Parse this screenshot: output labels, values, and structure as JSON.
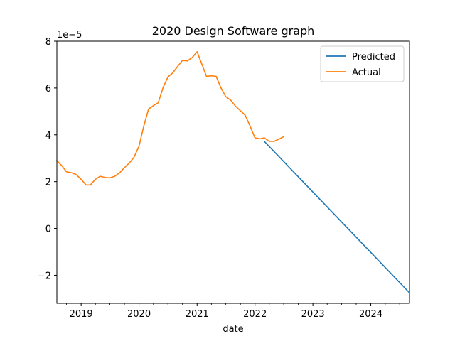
{
  "chart_data": {
    "type": "line",
    "title": "2020 Design Software graph",
    "xlabel": "date",
    "ylabel": "",
    "y_offset_label": "1e−5",
    "y_scale": 1e-05,
    "x_axis_type": "date",
    "xlim": [
      "2018-08-01",
      "2024-09-01"
    ],
    "ylim": [
      -3.2e-05,
      8e-05
    ],
    "xticks": [
      {
        "value": "2019-01-01",
        "label": "2019"
      },
      {
        "value": "2020-01-01",
        "label": "2020"
      },
      {
        "value": "2021-01-01",
        "label": "2021"
      },
      {
        "value": "2022-01-01",
        "label": "2022"
      },
      {
        "value": "2023-01-01",
        "label": "2023"
      },
      {
        "value": "2024-01-01",
        "label": "2024"
      }
    ],
    "yticks": [
      {
        "value": -2e-05,
        "label": "−2"
      },
      {
        "value": 0,
        "label": "0"
      },
      {
        "value": 2e-05,
        "label": "2"
      },
      {
        "value": 4e-05,
        "label": "4"
      },
      {
        "value": 6e-05,
        "label": "6"
      },
      {
        "value": 8e-05,
        "label": "8"
      }
    ],
    "grid": false,
    "legend_position": "top-right",
    "series": [
      {
        "name": "Predicted",
        "color": "#1f77b4",
        "x": [
          "2022-03-01",
          "2024-09-01"
        ],
        "y": [
          3.72e-05,
          -2.75e-05
        ]
      },
      {
        "name": "Actual",
        "color": "#ff7f0e",
        "x": [
          "2018-08-01",
          "2018-09-01",
          "2018-10-01",
          "2018-11-01",
          "2018-12-01",
          "2019-01-01",
          "2019-02-01",
          "2019-03-01",
          "2019-04-01",
          "2019-05-01",
          "2019-06-01",
          "2019-07-01",
          "2019-08-01",
          "2019-09-01",
          "2019-10-01",
          "2019-11-01",
          "2019-12-01",
          "2020-01-01",
          "2020-02-01",
          "2020-03-01",
          "2020-04-01",
          "2020-05-01",
          "2020-06-01",
          "2020-07-01",
          "2020-08-01",
          "2020-09-01",
          "2020-10-01",
          "2020-11-01",
          "2020-12-01",
          "2021-01-01",
          "2021-02-01",
          "2021-03-01",
          "2021-04-01",
          "2021-05-01",
          "2021-06-01",
          "2021-07-01",
          "2021-08-01",
          "2021-09-01",
          "2021-10-01",
          "2021-11-01",
          "2021-12-01",
          "2022-01-01",
          "2022-02-01",
          "2022-03-01",
          "2022-04-01",
          "2022-05-01",
          "2022-06-01",
          "2022-07-01"
        ],
        "y": [
          2.9e-05,
          2.68e-05,
          2.42e-05,
          2.38e-05,
          2.3e-05,
          2.1e-05,
          1.86e-05,
          1.86e-05,
          2.1e-05,
          2.23e-05,
          2.18e-05,
          2.16e-05,
          2.23e-05,
          2.38e-05,
          2.6e-05,
          2.8e-05,
          3.05e-05,
          3.52e-05,
          4.4e-05,
          5.1e-05,
          5.25e-05,
          5.37e-05,
          6.03e-05,
          6.47e-05,
          6.65e-05,
          6.93e-05,
          7.18e-05,
          7.16e-05,
          7.3e-05,
          7.55e-05,
          7e-05,
          6.5e-05,
          6.52e-05,
          6.5e-05,
          6e-05,
          5.63e-05,
          5.48e-05,
          5.22e-05,
          5.03e-05,
          4.83e-05,
          4.37e-05,
          3.87e-05,
          3.83e-05,
          3.87e-05,
          3.72e-05,
          3.72e-05,
          3.82e-05,
          3.92e-05
        ]
      }
    ]
  }
}
